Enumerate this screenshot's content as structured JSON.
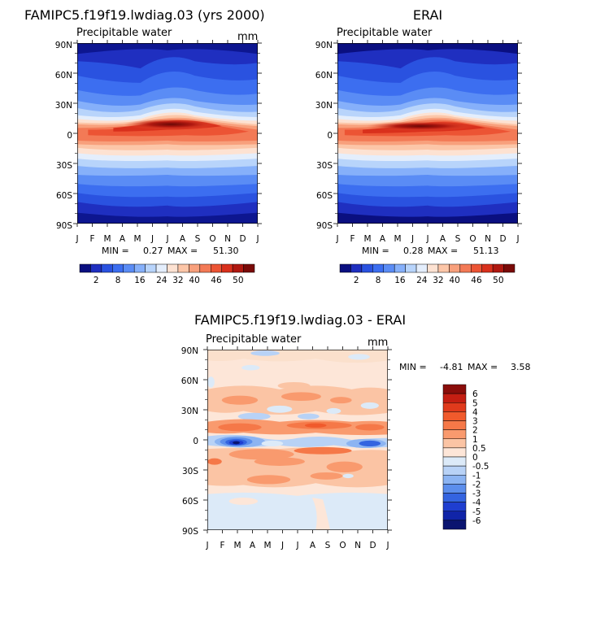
{
  "chart_data": [
    {
      "type": "heatmap",
      "title": "FAMIPC5.f19f19.lwdiag.03 (yrs 2000)",
      "subtitle": "Precipitable water",
      "units": "mm",
      "x_tick_labels": [
        "J",
        "F",
        "M",
        "A",
        "M",
        "J",
        "J",
        "A",
        "S",
        "O",
        "N",
        "D",
        "J"
      ],
      "y_tick_labels": [
        "90N",
        "60N",
        "30N",
        "0",
        "30S",
        "60S",
        "90S"
      ],
      "stats": {
        "min_label": "MIN =",
        "min": "0.27",
        "max_label": "MAX =",
        "max": "51.30"
      },
      "colorbar_labels": [
        "2",
        "8",
        "16",
        "24",
        "32",
        "40",
        "46",
        "50"
      ],
      "colorbar_colors": [
        "#0a0f80",
        "#1f2fc0",
        "#2a52e0",
        "#3c6ef0",
        "#5a8cf5",
        "#86b0fa",
        "#b8d4fb",
        "#e4eefc",
        "#fde2d2",
        "#fcc6a8",
        "#f8a07c",
        "#f37a56",
        "#ec5434",
        "#d9301c",
        "#b01810",
        "#7a0a08"
      ],
      "field": "global precipitable water climatology, ~2 mm near poles rising to ~51 mm in the tropics, peak in northern summer (Aug)"
    },
    {
      "type": "heatmap",
      "title": "ERAI",
      "subtitle": "Precipitable water",
      "units": "",
      "x_tick_labels": [
        "J",
        "F",
        "M",
        "A",
        "M",
        "J",
        "J",
        "A",
        "S",
        "O",
        "N",
        "D",
        "J"
      ],
      "y_tick_labels": [
        "90N",
        "60N",
        "30N",
        "0",
        "30S",
        "60S",
        "90S"
      ],
      "stats": {
        "min_label": "MIN =",
        "min": "0.28",
        "max_label": "MAX =",
        "max": "51.13"
      },
      "colorbar_labels": [
        "2",
        "8",
        "16",
        "24",
        "32",
        "40",
        "46",
        "50"
      ],
      "colorbar_colors": [
        "#0a0f80",
        "#1f2fc0",
        "#2a52e0",
        "#3c6ef0",
        "#5a8cf5",
        "#86b0fa",
        "#b8d4fb",
        "#e4eefc",
        "#fde2d2",
        "#fcc6a8",
        "#f8a07c",
        "#f37a56",
        "#ec5434",
        "#d9301c",
        "#b01810",
        "#7a0a08"
      ]
    },
    {
      "type": "heatmap",
      "title": "FAMIPC5.f19f19.lwdiag.03 - ERAI",
      "subtitle": "Precipitable water",
      "units": "mm",
      "x_tick_labels": [
        "J",
        "F",
        "M",
        "A",
        "M",
        "J",
        "J",
        "A",
        "S",
        "O",
        "N",
        "D",
        "J"
      ],
      "y_tick_labels": [
        "90N",
        "60N",
        "30N",
        "0",
        "30S",
        "60S",
        "90S"
      ],
      "stats": {
        "min_label": "MIN =",
        "min": "-4.81",
        "max_label": "MAX =",
        "max": "3.58"
      },
      "colorbar_labels": [
        "6",
        "5",
        "4",
        "3",
        "2",
        "1",
        "0.5",
        "0",
        "-0.5",
        "-1",
        "-2",
        "-3",
        "-4",
        "-5",
        "-6"
      ],
      "colorbar_colors": [
        "#8a0d0a",
        "#c41e12",
        "#e03a1c",
        "#f05a2c",
        "#f57848",
        "#f99a6e",
        "#fbc4a4",
        "#fde6d8",
        "#dceaf8",
        "#b8d2f6",
        "#8cb4f2",
        "#5c8eec",
        "#3464e0",
        "#1f3ed0",
        "#1024a8",
        "#0a1470"
      ]
    }
  ]
}
